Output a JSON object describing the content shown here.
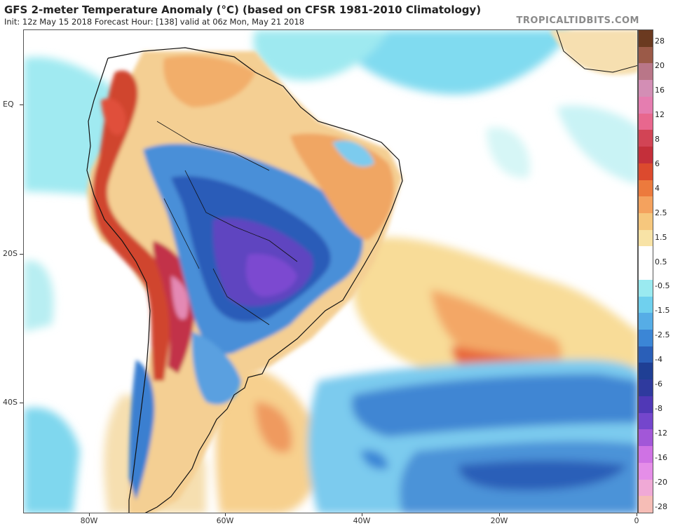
{
  "header": {
    "title": "GFS 2-meter Temperature Anomaly (°C) (based on CFSR 1981-2010 Climatology)",
    "subtitle": "Init: 12z May 15 2018   Forecast Hour: [138]   valid at 06z Mon, May 21 2018",
    "brand": "TROPICALTIDBITS.COM"
  },
  "axes": {
    "lat_labels": [
      "EQ",
      "20S",
      "40S"
    ],
    "lon_labels": [
      "80W",
      "60W",
      "40W",
      "20W",
      "0"
    ]
  },
  "colorbar": {
    "labels": [
      "28",
      "20",
      "16",
      "12",
      "8",
      "6",
      "4",
      "2.5",
      "1.5",
      "0.5",
      "-0.5",
      "-1.5",
      "-2.5",
      "-4",
      "-6",
      "-8",
      "-12",
      "-16",
      "-20",
      "-28"
    ],
    "colors": [
      "#6b3a20",
      "#9b5a48",
      "#b97688",
      "#d38eb5",
      "#e57db0",
      "#e8678e",
      "#d24455",
      "#c42f3a",
      "#dc4a2e",
      "#ec7a3d",
      "#f4a25e",
      "#f6c77d",
      "#f8e3a6",
      "#ffffff",
      "#ffffff",
      "#9aeaf0",
      "#6fd0ee",
      "#56ade6",
      "#3b86d6",
      "#2a5fb8",
      "#1f3f94",
      "#2f3a9e",
      "#5038b6",
      "#7446cc",
      "#a257d8",
      "#cf72e4",
      "#e58ee8",
      "#f0a9d6",
      "#f6bdb6"
    ]
  }
}
